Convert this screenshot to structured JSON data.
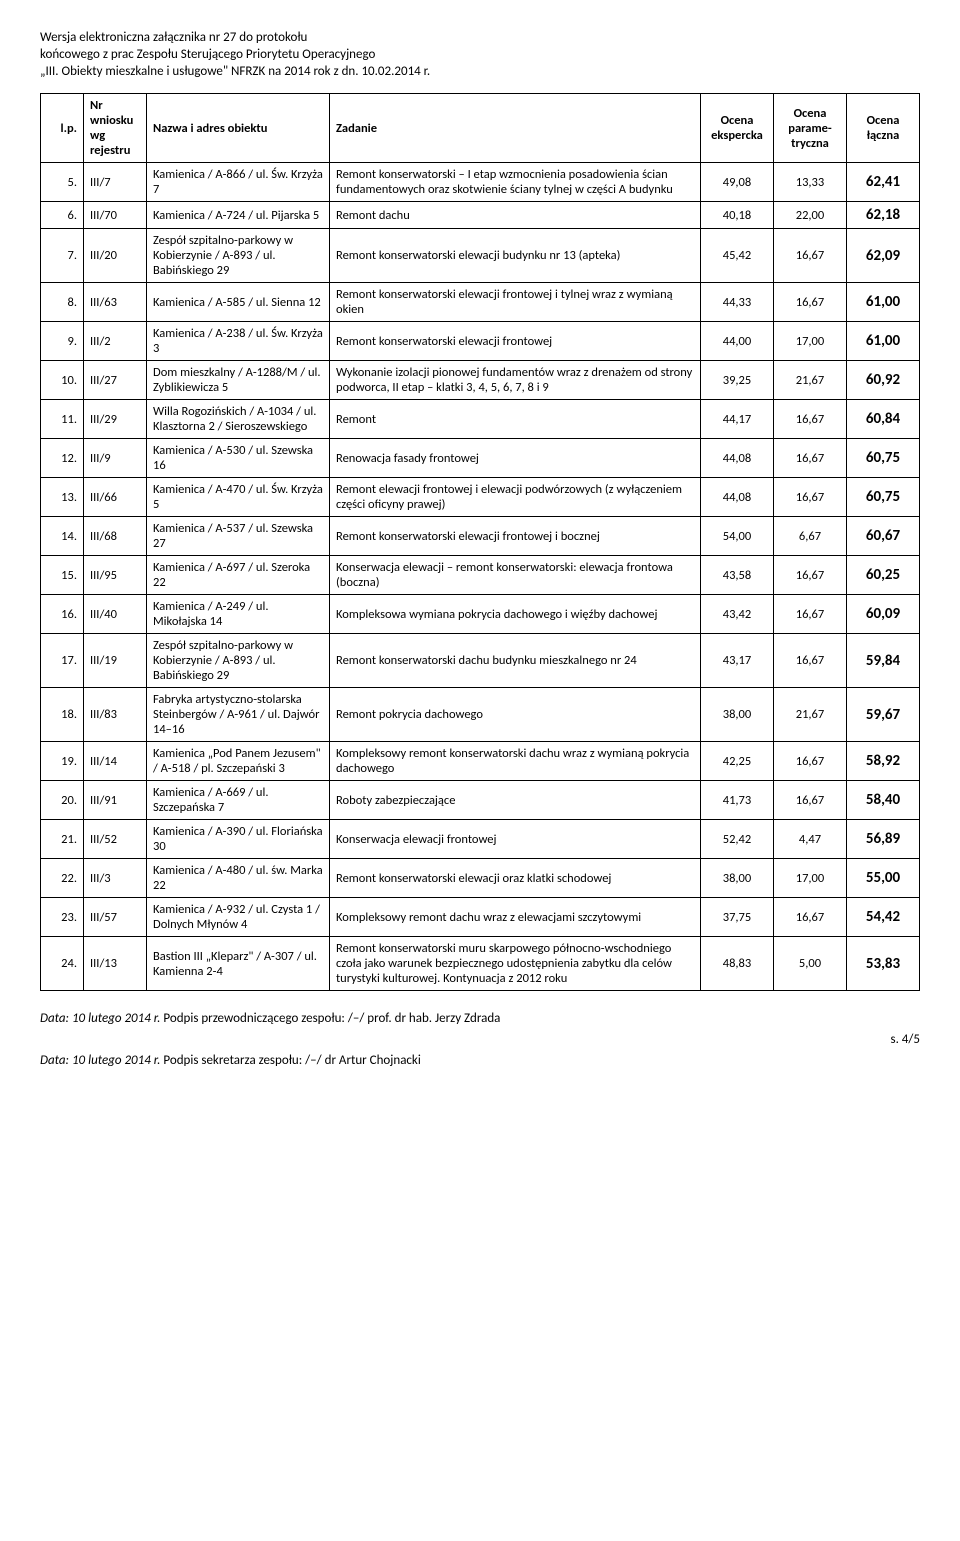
{
  "header": {
    "line1": "Wersja elektroniczna załącznika nr 27 do protokołu",
    "line2": "końcowego z prac Zespołu Sterującego Priorytetu Operacyjnego",
    "line3": "„III. Obiekty mieszkalne i usługowe\" NFRZK na 2014 rok z dn. 10.02.2014 r."
  },
  "columns": {
    "lp": "l.p.",
    "nr": "Nr wniosku wg rejestru",
    "name": "Nazwa i adres obiektu",
    "task": "Zadanie",
    "expert": "Ocena ekspercka",
    "param": "Ocena parame-tryczna",
    "total": "Ocena łączna"
  },
  "rows": [
    {
      "lp": "5.",
      "nr": "III/7",
      "name": "Kamienica / A-866 / ul. Św. Krzyża 7",
      "task": "Remont konserwatorski – I etap wzmocnienia posadowienia ścian fundamentowych oraz skotwienie ściany tylnej w części A budynku",
      "e": "49,08",
      "p": "13,33",
      "t": "62,41"
    },
    {
      "lp": "6.",
      "nr": "III/70",
      "name": "Kamienica / A-724 / ul. Pijarska 5",
      "task": "Remont dachu",
      "e": "40,18",
      "p": "22,00",
      "t": "62,18"
    },
    {
      "lp": "7.",
      "nr": "III/20",
      "name": "Zespół szpitalno-parkowy w Kobierzynie / A-893 / ul. Babińskiego 29",
      "task": "Remont konserwatorski elewacji budynku nr 13 (apteka)",
      "e": "45,42",
      "p": "16,67",
      "t": "62,09"
    },
    {
      "lp": "8.",
      "nr": "III/63",
      "name": "Kamienica / A-585 / ul. Sienna 12",
      "task": "Remont konserwatorski elewacji frontowej i tylnej wraz z wymianą okien",
      "e": "44,33",
      "p": "16,67",
      "t": "61,00"
    },
    {
      "lp": "9.",
      "nr": "III/2",
      "name": "Kamienica / A-238 / ul. Św. Krzyża 3",
      "task": "Remont konserwatorski elewacji frontowej",
      "e": "44,00",
      "p": "17,00",
      "t": "61,00"
    },
    {
      "lp": "10.",
      "nr": "III/27",
      "name": "Dom mieszkalny / A-1288/M / ul. Zyblikiewicza 5",
      "task": "Wykonanie izolacji pionowej fundamentów wraz z drenażem od strony podworca, II etap – klatki 3, 4, 5, 6, 7, 8 i 9",
      "e": "39,25",
      "p": "21,67",
      "t": "60,92"
    },
    {
      "lp": "11.",
      "nr": "III/29",
      "name": "Willa Rogozińskich / A-1034 / ul. Klasztorna 2 / Sieroszewskiego",
      "task": "Remont",
      "e": "44,17",
      "p": "16,67",
      "t": "60,84"
    },
    {
      "lp": "12.",
      "nr": "III/9",
      "name": "Kamienica / A-530 / ul. Szewska 16",
      "task": "Renowacja fasady frontowej",
      "e": "44,08",
      "p": "16,67",
      "t": "60,75"
    },
    {
      "lp": "13.",
      "nr": "III/66",
      "name": "Kamienica / A-470 / ul. Św. Krzyża 5",
      "task": "Remont elewacji frontowej i elewacji podwórzowych (z wyłączeniem części oficyny prawej)",
      "e": "44,08",
      "p": "16,67",
      "t": "60,75"
    },
    {
      "lp": "14.",
      "nr": "III/68",
      "name": "Kamienica / A-537 / ul. Szewska 27",
      "task": "Remont konserwatorski elewacji frontowej i bocznej",
      "e": "54,00",
      "p": "6,67",
      "t": "60,67"
    },
    {
      "lp": "15.",
      "nr": "III/95",
      "name": "Kamienica / A-697 / ul. Szeroka 22",
      "task": "Konserwacja elewacji – remont konserwatorski: elewacja frontowa (boczna)",
      "e": "43,58",
      "p": "16,67",
      "t": "60,25"
    },
    {
      "lp": "16.",
      "nr": "III/40",
      "name": "Kamienica / A-249 / ul. Mikołajska 14",
      "task": "Kompleksowa wymiana pokrycia dachowego i więźby dachowej",
      "e": "43,42",
      "p": "16,67",
      "t": "60,09"
    },
    {
      "lp": "17.",
      "nr": "III/19",
      "name": "Zespół szpitalno-parkowy w Kobierzynie / A-893 / ul. Babińskiego 29",
      "task": "Remont konserwatorski dachu budynku mieszkalnego nr 24",
      "e": "43,17",
      "p": "16,67",
      "t": "59,84"
    },
    {
      "lp": "18.",
      "nr": "III/83",
      "name": "Fabryka artystyczno-stolarska Steinbergów / A-961 / ul. Dajwór 14–16",
      "task": "Remont pokrycia dachowego",
      "e": "38,00",
      "p": "21,67",
      "t": "59,67"
    },
    {
      "lp": "19.",
      "nr": "III/14",
      "name": "Kamienica „Pod Panem Jezusem\" / A-518 / pl. Szczepański 3",
      "task": "Kompleksowy remont konserwatorski dachu wraz z wymianą pokrycia dachowego",
      "e": "42,25",
      "p": "16,67",
      "t": "58,92"
    },
    {
      "lp": "20.",
      "nr": "III/91",
      "name": "Kamienica / A-669 / ul. Szczepańska 7",
      "task": "Roboty zabezpieczające",
      "e": "41,73",
      "p": "16,67",
      "t": "58,40"
    },
    {
      "lp": "21.",
      "nr": "III/52",
      "name": "Kamienica / A-390 / ul. Floriańska 30",
      "task": "Konserwacja elewacji frontowej",
      "e": "52,42",
      "p": "4,47",
      "t": "56,89"
    },
    {
      "lp": "22.",
      "nr": "III/3",
      "name": "Kamienica / A-480 / ul. św. Marka 22",
      "task": "Remont konserwatorski elewacji oraz klatki schodowej",
      "e": "38,00",
      "p": "17,00",
      "t": "55,00"
    },
    {
      "lp": "23.",
      "nr": "III/57",
      "name": "Kamienica / A-932 / ul. Czysta 1 / Dolnych Młynów 4",
      "task": "Kompleksowy remont dachu wraz z elewacjami szczytowymi",
      "e": "37,75",
      "p": "16,67",
      "t": "54,42"
    },
    {
      "lp": "24.",
      "nr": "III/13",
      "name": "Bastion III „Kleparz\" / A-307 / ul. Kamienna 2-4",
      "task": "Remont konserwatorski muru skarpowego północno-wschodniego czoła jako warunek bezpiecznego udostępnienia zabytku dla celów turystyki kulturowej. Kontynuacja z 2012 roku",
      "e": "48,83",
      "p": "5,00",
      "t": "53,83"
    }
  ],
  "footer": {
    "line1_label": "Data: ",
    "line1_date": "10 lutego 2014 r.",
    "line1_rest": "   Podpis przewodniczącego zespołu:  /–/ prof. dr hab. Jerzy Zdrada",
    "line2_label": "Data: ",
    "line2_date": "10 lutego 2014 r.",
    "line2_rest": "   Podpis sekretarza zespołu:              /–/ dr Artur Chojnacki",
    "page": "s. 4/5"
  }
}
